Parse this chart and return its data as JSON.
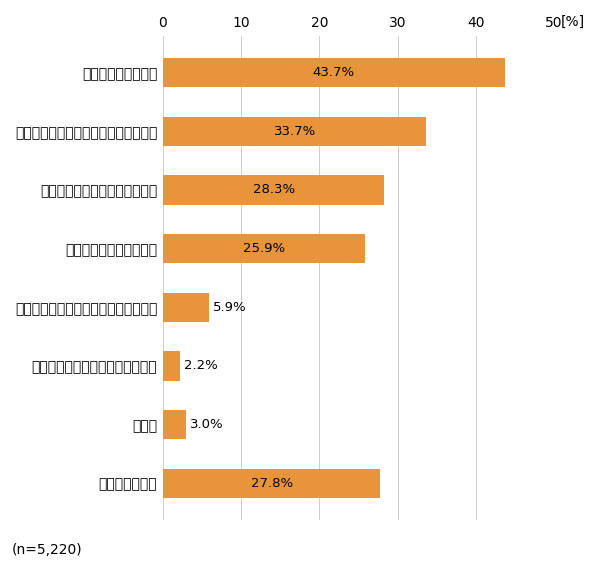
{
  "categories": [
    "損する可能性がある",
    "金融や投資に関する知識持っていない",
    "価格の変動に神経を使うのが嫌",
    "ギャンブルのようなもの",
    "周りに証券投資をしている人がいない",
    "将来の生活資金は十分持っている",
    "その他",
    "特に理由はない"
  ],
  "values": [
    43.7,
    33.7,
    28.3,
    25.9,
    5.9,
    2.2,
    3.0,
    27.8
  ],
  "bar_color": "#E8943A",
  "xlim": [
    0,
    50
  ],
  "xticks": [
    0,
    10,
    20,
    30,
    40,
    50
  ],
  "percent_label": "[%]",
  "note": "(n=5,220)",
  "bar_height": 0.5,
  "value_label_threshold": 7
}
